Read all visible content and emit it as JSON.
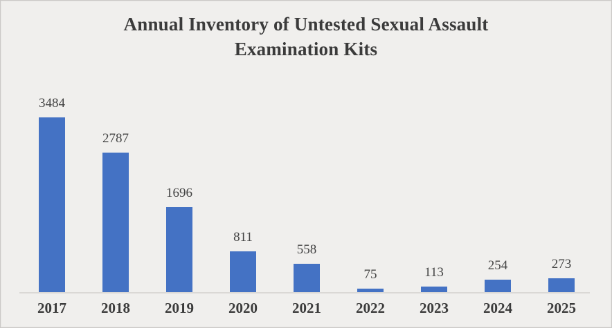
{
  "chart_data": {
    "type": "bar",
    "title": "Annual Inventory of Untested Sexual Assault Examination Kits",
    "categories": [
      "2017",
      "2018",
      "2019",
      "2020",
      "2021",
      "2022",
      "2023",
      "2024",
      "2025"
    ],
    "values": [
      3484,
      2787,
      1696,
      811,
      558,
      75,
      113,
      254,
      273
    ],
    "xlabel": "",
    "ylabel": "",
    "ylim": [
      0,
      3600
    ],
    "grid": false,
    "legend": false,
    "data_labels": true
  },
  "colors": {
    "bar": "#4472C4",
    "background": "#F0EFED",
    "axis_line": "#DAD8D5",
    "title_text": "#3B3B3B",
    "label_text": "#444444",
    "border": "#CBC9C6"
  }
}
